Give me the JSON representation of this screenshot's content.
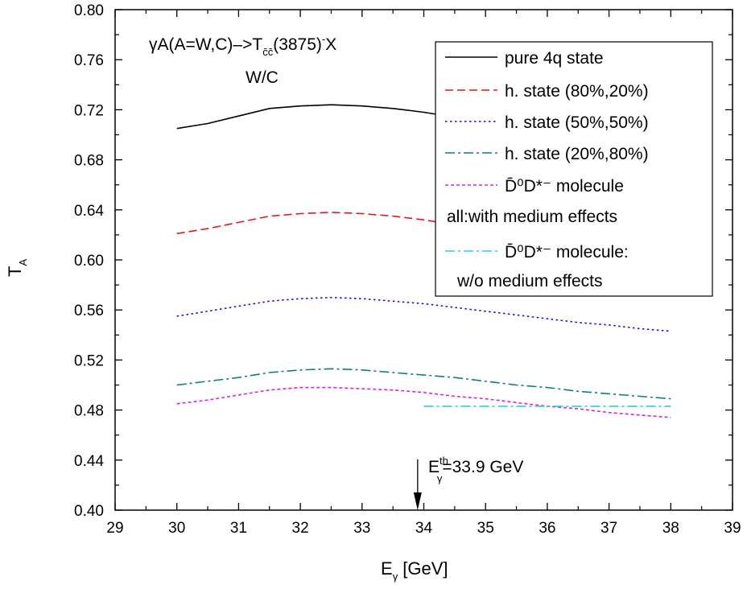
{
  "chart_data": {
    "type": "line",
    "xlabel": "E",
    "xlabel_sub": "γ",
    "xlabel_unit": " [GeV]",
    "ylabel": "T",
    "ylabel_sub": "A",
    "xlim": [
      29,
      39
    ],
    "ylim": [
      0.4,
      0.8
    ],
    "x_ticks": [
      "29",
      "30",
      "31",
      "32",
      "33",
      "34",
      "35",
      "36",
      "37",
      "38",
      "39"
    ],
    "y_ticks": [
      "0.40",
      "0.44",
      "0.48",
      "0.52",
      "0.56",
      "0.60",
      "0.64",
      "0.68",
      "0.72",
      "0.76",
      "0.80"
    ],
    "grid": false,
    "legend_position": "top-right",
    "annotations": {
      "reaction_prefix": "γA(A=W,C)–>T",
      "reaction_sub": "c̄c̄",
      "reaction_paren": "(3875)",
      "reaction_sup": "-",
      "reaction_suffix": "X",
      "ratio_label": "W/C",
      "threshold_label_main": "E",
      "threshold_label_sup": "th",
      "threshold_label_sub": "γ",
      "threshold_label_value": "=33.9 GeV",
      "threshold_x": 33.9
    },
    "legend_note": "all:with medium effects",
    "legend_last_line2": "w/o medium effects",
    "series": [
      {
        "name": "pure 4q state",
        "color": "#000000",
        "dash": "solid",
        "x": [
          30,
          30.5,
          31,
          31.5,
          32,
          32.5,
          33,
          33.5,
          34,
          34.5,
          35,
          35.5,
          36,
          36.5,
          37,
          37.5,
          38
        ],
        "y": [
          0.705,
          0.709,
          0.715,
          0.721,
          0.723,
          0.724,
          0.723,
          0.721,
          0.718,
          0.714,
          0.71,
          0.705,
          0.7,
          0.695,
          0.69,
          0.685,
          0.68
        ]
      },
      {
        "name": "h. state (80%,20%)",
        "color": "#e8161a",
        "dash": "dashed",
        "x": [
          30,
          30.5,
          31,
          31.5,
          32,
          32.5,
          33,
          33.5,
          34,
          34.5,
          35,
          35.5,
          36,
          36.5,
          37,
          37.5,
          38
        ],
        "y": [
          0.621,
          0.625,
          0.63,
          0.635,
          0.637,
          0.638,
          0.637,
          0.635,
          0.632,
          0.628,
          0.624,
          0.62,
          0.616,
          0.611,
          0.607,
          0.602,
          0.598
        ]
      },
      {
        "name": "h. state (50%,50%)",
        "color": "#1414d8",
        "dash": "dotted",
        "x": [
          30,
          30.5,
          31,
          31.5,
          32,
          32.5,
          33,
          33.5,
          34,
          34.5,
          35,
          35.5,
          36,
          36.5,
          37,
          37.5,
          38
        ],
        "y": [
          0.555,
          0.559,
          0.563,
          0.567,
          0.569,
          0.57,
          0.569,
          0.567,
          0.565,
          0.562,
          0.559,
          0.556,
          0.553,
          0.55,
          0.548,
          0.545,
          0.543
        ]
      },
      {
        "name": "h. state (20%,80%)",
        "color": "#0f7f7f",
        "dash": "dashdot",
        "x": [
          30,
          30.5,
          31,
          31.5,
          32,
          32.5,
          33,
          33.5,
          34,
          34.5,
          35,
          35.5,
          36,
          36.5,
          37,
          37.5,
          38
        ],
        "y": [
          0.5,
          0.503,
          0.506,
          0.51,
          0.512,
          0.513,
          0.512,
          0.51,
          0.508,
          0.506,
          0.503,
          0.5,
          0.498,
          0.495,
          0.493,
          0.491,
          0.489
        ]
      },
      {
        "name": "D̄⁰D*⁻ molecule",
        "color": "#e21de2",
        "dash": "shortdash",
        "x": [
          30,
          30.5,
          31,
          31.5,
          32,
          32.5,
          33,
          33.5,
          34,
          34.5,
          35,
          35.5,
          36,
          36.5,
          37,
          37.5,
          38
        ],
        "y": [
          0.485,
          0.488,
          0.492,
          0.496,
          0.498,
          0.498,
          0.497,
          0.496,
          0.494,
          0.491,
          0.489,
          0.486,
          0.483,
          0.481,
          0.478,
          0.476,
          0.474
        ]
      },
      {
        "name": "D̄⁰D*⁻ molecule:",
        "color": "#20d4e0",
        "dash": "dashdot",
        "x": [
          34,
          36,
          38
        ],
        "y": [
          0.483,
          0.483,
          0.483
        ]
      }
    ]
  }
}
